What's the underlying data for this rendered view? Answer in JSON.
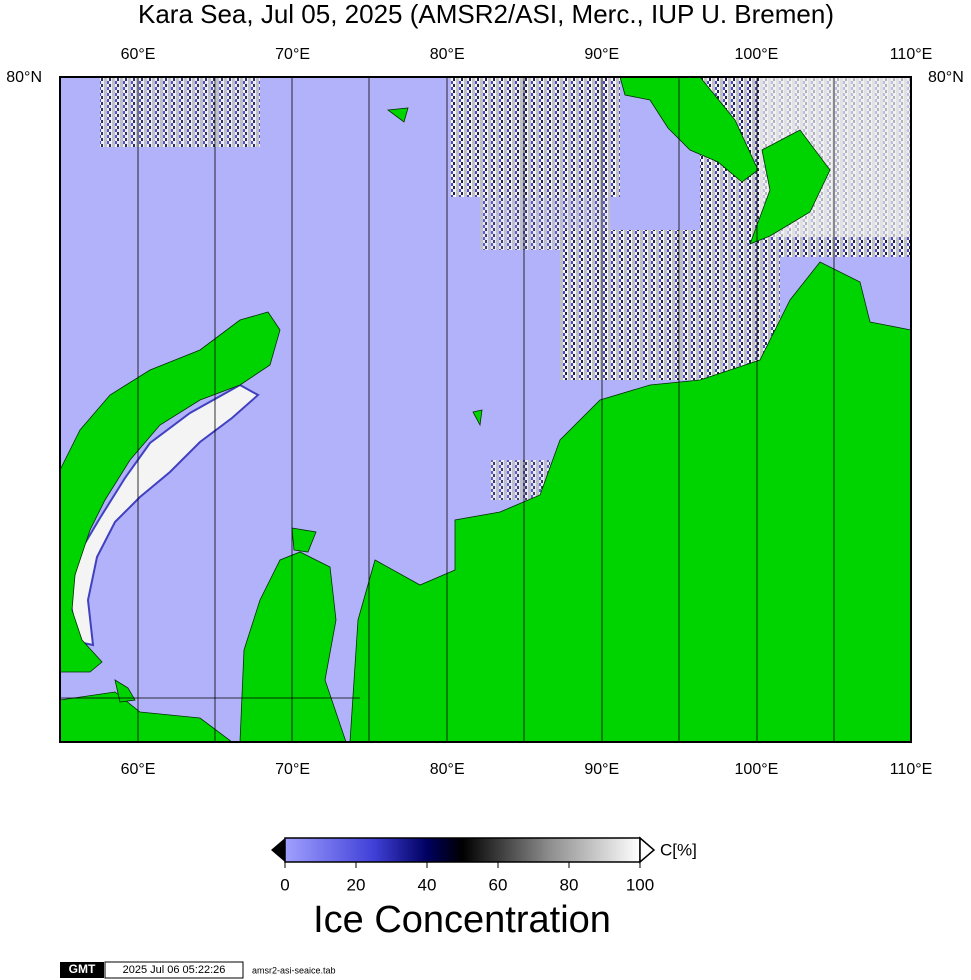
{
  "title": "Kara Sea, Jul 05, 2025 (AMSR2/ASI, Merc., IUP U. Bremen)",
  "map": {
    "lon_labels": [
      "60°E",
      "70°E",
      "80°E",
      "90°E",
      "100°E",
      "110°E"
    ],
    "lat_label": "80°N"
  },
  "colorbar": {
    "ticks": [
      0,
      20,
      40,
      60,
      80,
      100
    ],
    "unit": "C[%]",
    "title": "Ice Concentration"
  },
  "footer": {
    "logo": "GMT",
    "timestamp": "2025 Jul 06 05:22:26",
    "file": "amsr2-asi-seaice.tab"
  }
}
